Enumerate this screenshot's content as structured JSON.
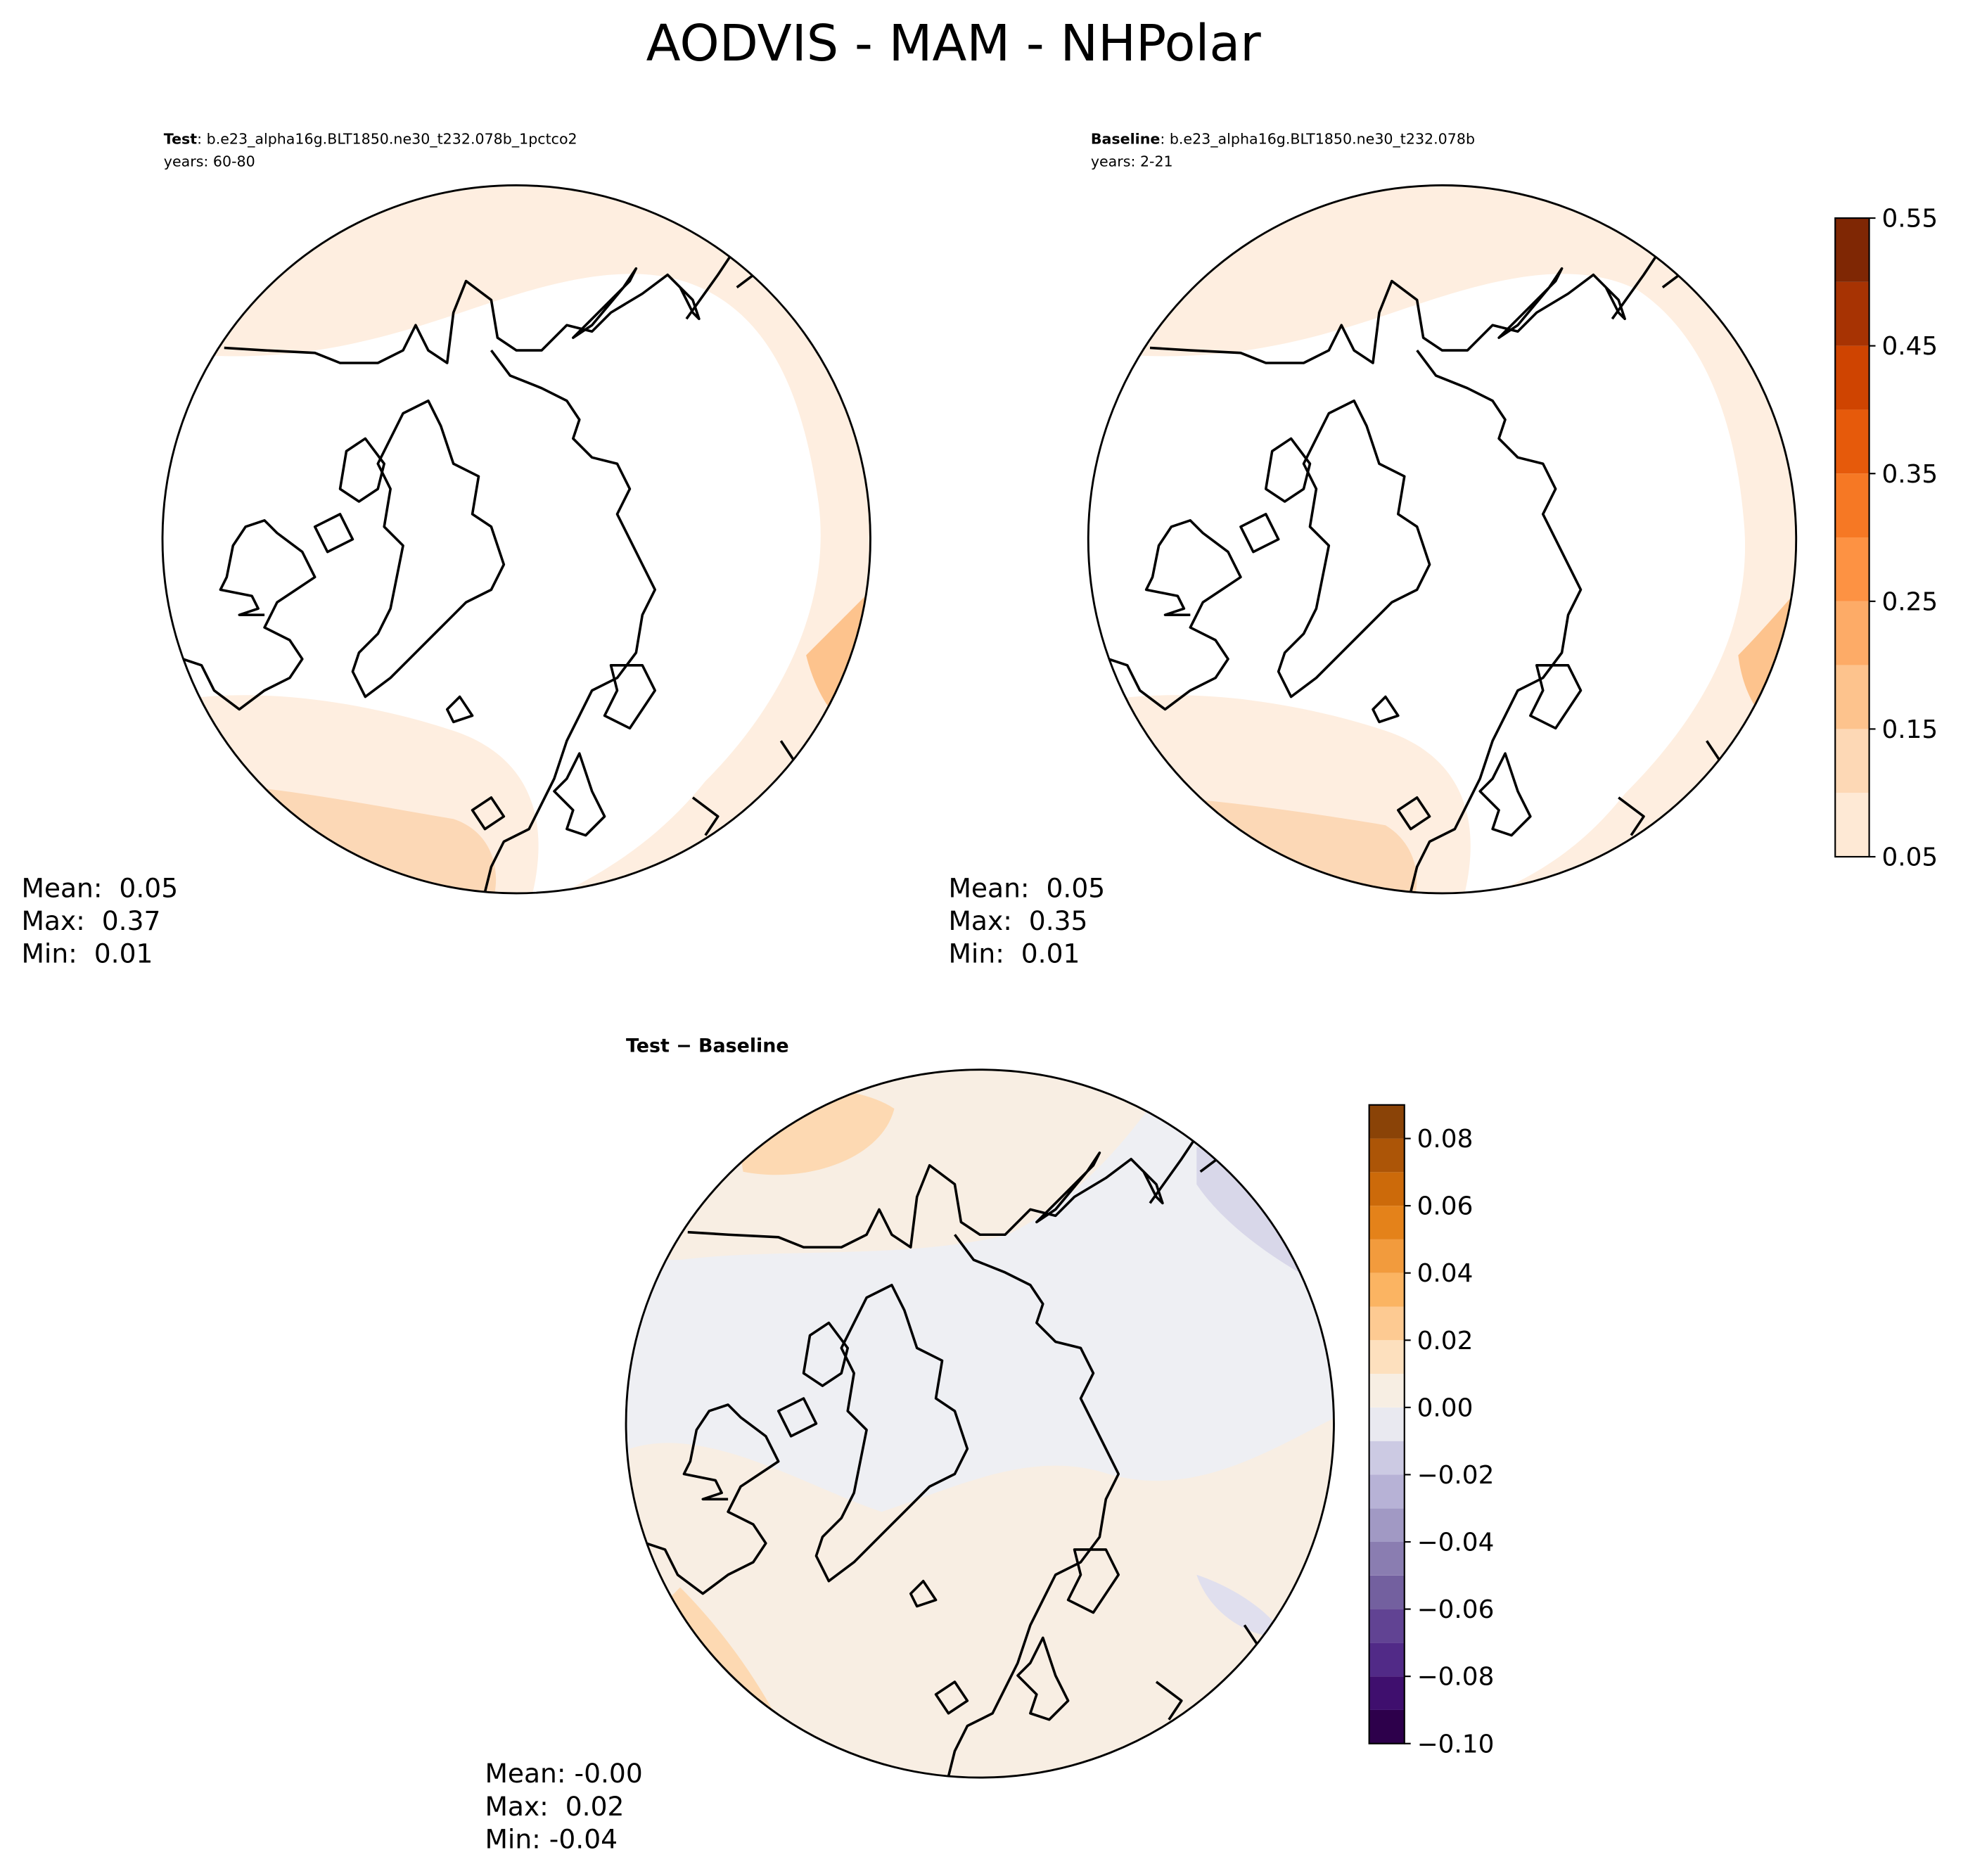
{
  "title": "AODVIS - MAM - NHPolar",
  "panels": [
    {
      "label": "Test",
      "case": ": b.e23_alpha16g.BLT1850.ne30_t232.078b_1pctco2",
      "years": "years: 60-80",
      "stats": [
        "Mean:  0.05",
        "Max:  0.37",
        "Min:  0.01"
      ]
    },
    {
      "label": "Baseline",
      "case": ": b.e23_alpha16g.BLT1850.ne30_t232.078b",
      "years": "years: 2-21",
      "stats": [
        "Mean:  0.05",
        "Max:  0.35",
        "Min:  0.01"
      ]
    },
    {
      "label": "Test − Baseline",
      "stats": [
        "Mean: -0.00",
        "Max:  0.02",
        "Min: -0.04"
      ]
    }
  ],
  "colorbars": [
    {
      "lim": [
        0.05,
        0.55
      ],
      "levels": [
        0.05,
        0.1,
        0.15,
        0.2,
        0.25,
        0.3,
        0.35,
        0.4,
        0.45,
        0.5,
        0.55
      ],
      "colors": [
        "#fee9d5",
        "#fdd8b5",
        "#fdc38d",
        "#fdab67",
        "#fd9243",
        "#f67824",
        "#e65a0b",
        "#cf4401",
        "#a73303",
        "#7f2704"
      ],
      "ticks": [
        0.05,
        0.15,
        0.25,
        0.35,
        0.45,
        0.55
      ]
    },
    {
      "lim": [
        -0.1,
        0.09
      ],
      "levels": [
        -0.1,
        -0.09,
        -0.08,
        -0.07,
        -0.06,
        -0.05,
        -0.04,
        -0.03,
        -0.02,
        -0.01,
        0,
        0.01,
        0.02,
        0.03,
        0.04,
        0.05,
        0.06,
        0.07,
        0.08,
        0.09
      ],
      "colors": [
        "#2d004b",
        "#3f0f6e",
        "#512a87",
        "#614393",
        "#73609f",
        "#8a7db1",
        "#a199c4",
        "#b7b2d6",
        "#cccae3",
        "#e9e9f0",
        "#f7eee3",
        "#fde0be",
        "#fdca92",
        "#fbb462",
        "#f29b3d",
        "#e4821a",
        "#cc6a0a",
        "#ac5507",
        "#8a4307"
      ],
      "ticks": [
        {
          "value": -0.1,
          "label": "−0.10"
        },
        {
          "value": -0.08,
          "label": "−0.08"
        },
        {
          "value": -0.06,
          "label": "−0.06"
        },
        {
          "value": -0.04,
          "label": "−0.04"
        },
        {
          "value": -0.02,
          "label": "−0.02"
        },
        {
          "value": 0,
          "label": "0.00"
        },
        0.02,
        0.04,
        0.06,
        0.08
      ]
    }
  ]
}
